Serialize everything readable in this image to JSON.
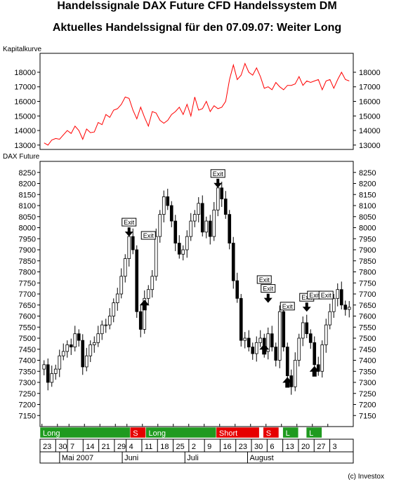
{
  "title": "Handelssignale DAX Future CFD Handelssystem DM",
  "subtitle": "Aktuelles Handelssignal für den 07.09.07: Weiter Long",
  "credit": "(c) Investox",
  "chart_data": [
    {
      "type": "line",
      "name": "Kapitalkurve",
      "ylim": [
        12700,
        19300
      ],
      "yticks": [
        13000,
        14000,
        15000,
        16000,
        17000,
        18000
      ],
      "color": "#ff0000",
      "x_range": [
        0,
        80
      ],
      "x": [
        0,
        1,
        2,
        3,
        4,
        5,
        6,
        7,
        8,
        9,
        10,
        11,
        12,
        13,
        14,
        15,
        16,
        17,
        18,
        19,
        20,
        21,
        22,
        23,
        24,
        25,
        26,
        27,
        28,
        29,
        30,
        31,
        32,
        33,
        34,
        35,
        36,
        37,
        38,
        39,
        40,
        41,
        42,
        43,
        44,
        45,
        46,
        47,
        48,
        49,
        50,
        51,
        52,
        53,
        54,
        55,
        56,
        57,
        58,
        59,
        60,
        61,
        62,
        63,
        64,
        65,
        66,
        67,
        68,
        69,
        70,
        71,
        72,
        73,
        74,
        75,
        76,
        77,
        78,
        79
      ],
      "values": [
        13150,
        13000,
        13350,
        13450,
        13400,
        13700,
        14000,
        13800,
        14300,
        14000,
        13400,
        14100,
        13850,
        13900,
        14550,
        14400,
        15100,
        14900,
        15400,
        15500,
        15800,
        16300,
        16200,
        15400,
        14800,
        15600,
        14900,
        14300,
        15300,
        15200,
        14700,
        14500,
        14700,
        15100,
        15300,
        15600,
        15100,
        15800,
        15000,
        16300,
        15400,
        15500,
        16000,
        15300,
        15700,
        15500,
        15600,
        16000,
        17500,
        18500,
        17500,
        17800,
        18600,
        18000,
        17800,
        18300,
        17700,
        16900,
        17000,
        16800,
        17300,
        17000,
        16800,
        17100,
        17100,
        17200,
        17700,
        17100,
        17400,
        17300,
        17400,
        17500,
        16800,
        17400,
        17500,
        16900,
        17500,
        18000,
        17500,
        17400
      ]
    },
    {
      "type": "candlestick",
      "name": "DAX Future",
      "ylim": [
        7100,
        8300
      ],
      "yticks": [
        7150,
        7200,
        7250,
        7300,
        7350,
        7400,
        7450,
        7500,
        7550,
        7600,
        7650,
        7700,
        7750,
        7800,
        7850,
        7900,
        7950,
        8000,
        8050,
        8100,
        8150,
        8200,
        8250
      ],
      "x_range": [
        0,
        80
      ],
      "close_path": [
        7380,
        7300,
        7340,
        7360,
        7420,
        7440,
        7470,
        7460,
        7520,
        7490,
        7370,
        7420,
        7470,
        7480,
        7520,
        7560,
        7560,
        7600,
        7660,
        7700,
        7780,
        7860,
        7960,
        7900,
        7620,
        7540,
        7680,
        7720,
        7780,
        7960,
        8060,
        8140,
        8100,
        8030,
        7930,
        7880,
        7900,
        7960,
        8030,
        8060,
        8110,
        7980,
        8030,
        7960,
        8080,
        8180,
        8130,
        8060,
        7930,
        7760,
        7680,
        7490,
        7500,
        7460,
        7430,
        7480,
        7500,
        7440,
        7520,
        7460,
        7400,
        7620,
        7460,
        7330,
        7280,
        7400,
        7500,
        7570,
        7520,
        7480,
        7380,
        7350,
        7470,
        7560,
        7620,
        7680,
        7720,
        7650,
        7630,
        7640
      ],
      "signals": [
        {
          "kind": "exit",
          "x": 22,
          "price": 7960,
          "direction": "down"
        },
        {
          "kind": "entry",
          "x": 26,
          "price": 7680,
          "direction": "up"
        },
        {
          "kind": "exit",
          "x": 27,
          "price": 7900,
          "direction": "none"
        },
        {
          "kind": "exit",
          "x": 45,
          "price": 8180,
          "direction": "down"
        },
        {
          "kind": "exit",
          "x": 57,
          "price": 7700,
          "direction": "none"
        },
        {
          "kind": "exit",
          "x": 58,
          "price": 7660,
          "direction": "down"
        },
        {
          "kind": "entry",
          "x": 57,
          "price": 7480,
          "direction": "up"
        },
        {
          "kind": "entry",
          "x": 63,
          "price": 7330,
          "direction": "up"
        },
        {
          "kind": "exit",
          "x": 63,
          "price": 7580,
          "direction": "none"
        },
        {
          "kind": "exit",
          "x": 68,
          "price": 7620,
          "direction": "down"
        },
        {
          "kind": "exit",
          "x": 70,
          "price": 7630,
          "direction": "none"
        },
        {
          "kind": "entry",
          "x": 70,
          "price": 7380,
          "direction": "up"
        },
        {
          "kind": "exit",
          "x": 73,
          "price": 7630,
          "direction": "none"
        }
      ]
    }
  ],
  "signal_bar": [
    {
      "label": "Long",
      "start": 0,
      "end": 23,
      "color": "#1f9a1f"
    },
    {
      "label": "S",
      "start": 23,
      "end": 27,
      "color": "#e60000"
    },
    {
      "label": "Long",
      "start": 27,
      "end": 45,
      "color": "#1f9a1f"
    },
    {
      "label": "Short",
      "start": 45,
      "end": 56,
      "color": "#e60000"
    },
    {
      "label": "",
      "start": 56,
      "end": 57,
      "color": "#ffffff"
    },
    {
      "label": "S",
      "start": 57,
      "end": 61,
      "color": "#e60000"
    },
    {
      "label": "",
      "start": 61,
      "end": 62,
      "color": "#ffffff"
    },
    {
      "label": "L",
      "start": 62,
      "end": 66,
      "color": "#1f9a1f"
    },
    {
      "label": "",
      "start": 66,
      "end": 68,
      "color": "#ffffff"
    },
    {
      "label": "L",
      "start": 68,
      "end": 72,
      "color": "#1f9a1f"
    }
  ],
  "day_labels": [
    {
      "text": "23",
      "x": 0
    },
    {
      "text": "30",
      "x": 4
    },
    {
      "text": "7",
      "x": 7
    },
    {
      "text": "14",
      "x": 11
    },
    {
      "text": "21",
      "x": 15
    },
    {
      "text": "29",
      "x": 19
    },
    {
      "text": "4",
      "x": 22
    },
    {
      "text": "11",
      "x": 26
    },
    {
      "text": "18",
      "x": 30
    },
    {
      "text": "25",
      "x": 34
    },
    {
      "text": "2",
      "x": 38
    },
    {
      "text": "9",
      "x": 42
    },
    {
      "text": "16",
      "x": 46
    },
    {
      "text": "23",
      "x": 50
    },
    {
      "text": "30",
      "x": 54
    },
    {
      "text": "6",
      "x": 58
    },
    {
      "text": "13",
      "x": 62
    },
    {
      "text": "20",
      "x": 66
    },
    {
      "text": "27",
      "x": 70
    },
    {
      "text": "3",
      "x": 74
    }
  ],
  "month_labels": [
    {
      "text": "Mai 2007",
      "x": 5
    },
    {
      "text": "Juni",
      "x": 21
    },
    {
      "text": "Juli",
      "x": 37
    },
    {
      "text": "August",
      "x": 53
    }
  ],
  "labels": {
    "panel1": "Kapitalkurve",
    "panel2": "DAX Future",
    "exit": "Exit"
  }
}
